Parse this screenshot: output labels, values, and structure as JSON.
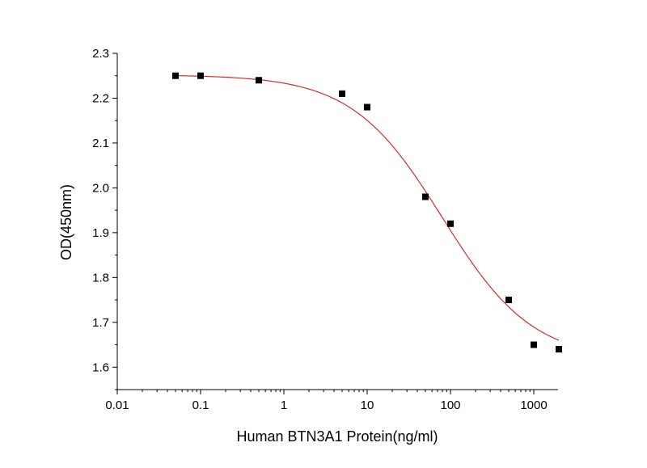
{
  "chart_data": {
    "type": "scatter",
    "title": "",
    "xlabel": "Human BTN3A1 Protein(ng/ml)",
    "ylabel": "OD(450nm)",
    "x_scale": "log",
    "xlim": [
      0.01,
      2500
    ],
    "ylim": [
      1.55,
      2.3
    ],
    "x_ticks": [
      0.01,
      0.1,
      1,
      10,
      100,
      1000
    ],
    "x_tick_labels": [
      "0.01",
      "0.1",
      "1",
      "10",
      "100",
      "1000"
    ],
    "y_ticks": [
      1.6,
      1.7,
      1.8,
      1.9,
      2.0,
      2.1,
      2.2,
      2.3
    ],
    "y_tick_labels": [
      "1.6",
      "1.7",
      "1.8",
      "1.9",
      "2.0",
      "2.1",
      "2.2",
      "2.3"
    ],
    "grid": false,
    "series": [
      {
        "marker": "square",
        "color": "#000000",
        "x": [
          0.05,
          0.1,
          0.5,
          5,
          10,
          50,
          100,
          500,
          1000,
          2000
        ],
        "y": [
          2.25,
          2.25,
          2.24,
          2.21,
          2.18,
          1.98,
          1.92,
          1.75,
          1.65,
          1.64
        ]
      }
    ],
    "fit_curve": {
      "type": "sigmoidal",
      "color": "#d62b2b",
      "top": 2.252,
      "bottom": 1.615,
      "ec50": 80,
      "hill": 0.8
    }
  }
}
